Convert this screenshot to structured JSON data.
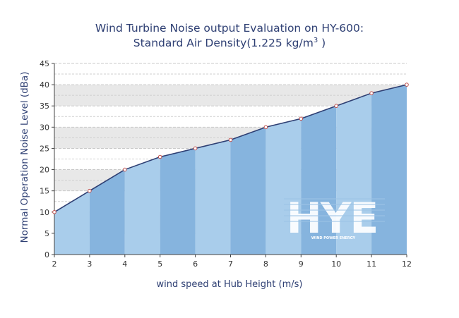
{
  "chart_data": {
    "type": "area",
    "title_line1": "Wind Turbine Noise output Evaluation on HY-600:",
    "title_line2_prefix": "Standard Air Density(1.225 kg/m",
    "title_line2_sup": "3",
    "title_line2_suffix": " )",
    "xlabel": "wind speed at Hub Height  (m/s)",
    "ylabel": "Normal Operation Noise  Level (dBa)",
    "x": [
      2,
      3,
      4,
      5,
      6,
      7,
      8,
      9,
      10,
      11,
      12
    ],
    "values": [
      10,
      15,
      20,
      23,
      25,
      27,
      30,
      32,
      35,
      38,
      40
    ],
    "xlim": [
      2,
      12
    ],
    "ylim": [
      0,
      45
    ],
    "yticks": [
      0,
      5,
      10,
      15,
      20,
      25,
      30,
      35,
      40,
      45
    ],
    "grid": true,
    "colors": {
      "band_light": "#a9cdeb",
      "band_dark": "#86b4de",
      "line": "#2e3f73",
      "marker_fill": "#ffffff",
      "marker_stroke": "#c0504d",
      "grid_band": "#e8e8e8",
      "text": "#2e3f73"
    }
  },
  "watermark": {
    "logo_text": "HYE",
    "tagline": "WIND POWER ENERGY"
  }
}
